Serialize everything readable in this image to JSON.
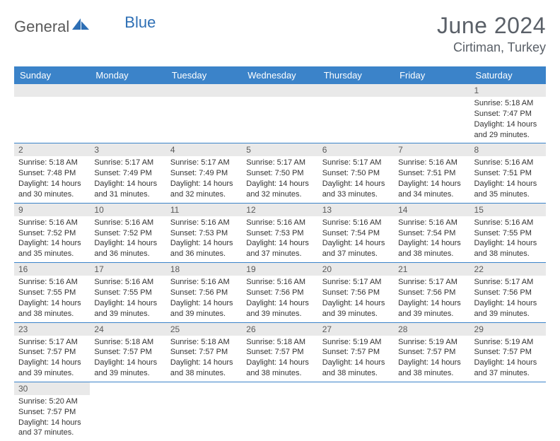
{
  "logo": {
    "text1": "General",
    "text2": "Blue"
  },
  "colors": {
    "header_bg": "#3b83c9",
    "header_text": "#ffffff",
    "daynum_bg": "#e9e9e9",
    "border": "#3b83c9",
    "title_color": "#5a6068",
    "logo_blue": "#2e6fb5",
    "logo_gray": "#5a5a5a"
  },
  "title": "June 2024",
  "location": "Cirtiman, Turkey",
  "weekdays": [
    "Sunday",
    "Monday",
    "Tuesday",
    "Wednesday",
    "Thursday",
    "Friday",
    "Saturday"
  ],
  "weeks": [
    [
      null,
      null,
      null,
      null,
      null,
      null,
      {
        "n": "1",
        "sr": "5:18 AM",
        "ss": "7:47 PM",
        "dh": "14",
        "dm": "29"
      }
    ],
    [
      {
        "n": "2",
        "sr": "5:18 AM",
        "ss": "7:48 PM",
        "dh": "14",
        "dm": "30"
      },
      {
        "n": "3",
        "sr": "5:17 AM",
        "ss": "7:49 PM",
        "dh": "14",
        "dm": "31"
      },
      {
        "n": "4",
        "sr": "5:17 AM",
        "ss": "7:49 PM",
        "dh": "14",
        "dm": "32"
      },
      {
        "n": "5",
        "sr": "5:17 AM",
        "ss": "7:50 PM",
        "dh": "14",
        "dm": "32"
      },
      {
        "n": "6",
        "sr": "5:17 AM",
        "ss": "7:50 PM",
        "dh": "14",
        "dm": "33"
      },
      {
        "n": "7",
        "sr": "5:16 AM",
        "ss": "7:51 PM",
        "dh": "14",
        "dm": "34"
      },
      {
        "n": "8",
        "sr": "5:16 AM",
        "ss": "7:51 PM",
        "dh": "14",
        "dm": "35"
      }
    ],
    [
      {
        "n": "9",
        "sr": "5:16 AM",
        "ss": "7:52 PM",
        "dh": "14",
        "dm": "35"
      },
      {
        "n": "10",
        "sr": "5:16 AM",
        "ss": "7:52 PM",
        "dh": "14",
        "dm": "36"
      },
      {
        "n": "11",
        "sr": "5:16 AM",
        "ss": "7:53 PM",
        "dh": "14",
        "dm": "36"
      },
      {
        "n": "12",
        "sr": "5:16 AM",
        "ss": "7:53 PM",
        "dh": "14",
        "dm": "37"
      },
      {
        "n": "13",
        "sr": "5:16 AM",
        "ss": "7:54 PM",
        "dh": "14",
        "dm": "37"
      },
      {
        "n": "14",
        "sr": "5:16 AM",
        "ss": "7:54 PM",
        "dh": "14",
        "dm": "38"
      },
      {
        "n": "15",
        "sr": "5:16 AM",
        "ss": "7:55 PM",
        "dh": "14",
        "dm": "38"
      }
    ],
    [
      {
        "n": "16",
        "sr": "5:16 AM",
        "ss": "7:55 PM",
        "dh": "14",
        "dm": "38"
      },
      {
        "n": "17",
        "sr": "5:16 AM",
        "ss": "7:55 PM",
        "dh": "14",
        "dm": "39"
      },
      {
        "n": "18",
        "sr": "5:16 AM",
        "ss": "7:56 PM",
        "dh": "14",
        "dm": "39"
      },
      {
        "n": "19",
        "sr": "5:16 AM",
        "ss": "7:56 PM",
        "dh": "14",
        "dm": "39"
      },
      {
        "n": "20",
        "sr": "5:17 AM",
        "ss": "7:56 PM",
        "dh": "14",
        "dm": "39"
      },
      {
        "n": "21",
        "sr": "5:17 AM",
        "ss": "7:56 PM",
        "dh": "14",
        "dm": "39"
      },
      {
        "n": "22",
        "sr": "5:17 AM",
        "ss": "7:56 PM",
        "dh": "14",
        "dm": "39"
      }
    ],
    [
      {
        "n": "23",
        "sr": "5:17 AM",
        "ss": "7:57 PM",
        "dh": "14",
        "dm": "39"
      },
      {
        "n": "24",
        "sr": "5:18 AM",
        "ss": "7:57 PM",
        "dh": "14",
        "dm": "39"
      },
      {
        "n": "25",
        "sr": "5:18 AM",
        "ss": "7:57 PM",
        "dh": "14",
        "dm": "38"
      },
      {
        "n": "26",
        "sr": "5:18 AM",
        "ss": "7:57 PM",
        "dh": "14",
        "dm": "38"
      },
      {
        "n": "27",
        "sr": "5:19 AM",
        "ss": "7:57 PM",
        "dh": "14",
        "dm": "38"
      },
      {
        "n": "28",
        "sr": "5:19 AM",
        "ss": "7:57 PM",
        "dh": "14",
        "dm": "38"
      },
      {
        "n": "29",
        "sr": "5:19 AM",
        "ss": "7:57 PM",
        "dh": "14",
        "dm": "37"
      }
    ],
    [
      {
        "n": "30",
        "sr": "5:20 AM",
        "ss": "7:57 PM",
        "dh": "14",
        "dm": "37"
      },
      null,
      null,
      null,
      null,
      null,
      null
    ]
  ],
  "labels": {
    "sunrise": "Sunrise: ",
    "sunset": "Sunset: ",
    "daylight_pre": "Daylight: ",
    "daylight_mid": " hours and ",
    "daylight_post": " minutes."
  }
}
